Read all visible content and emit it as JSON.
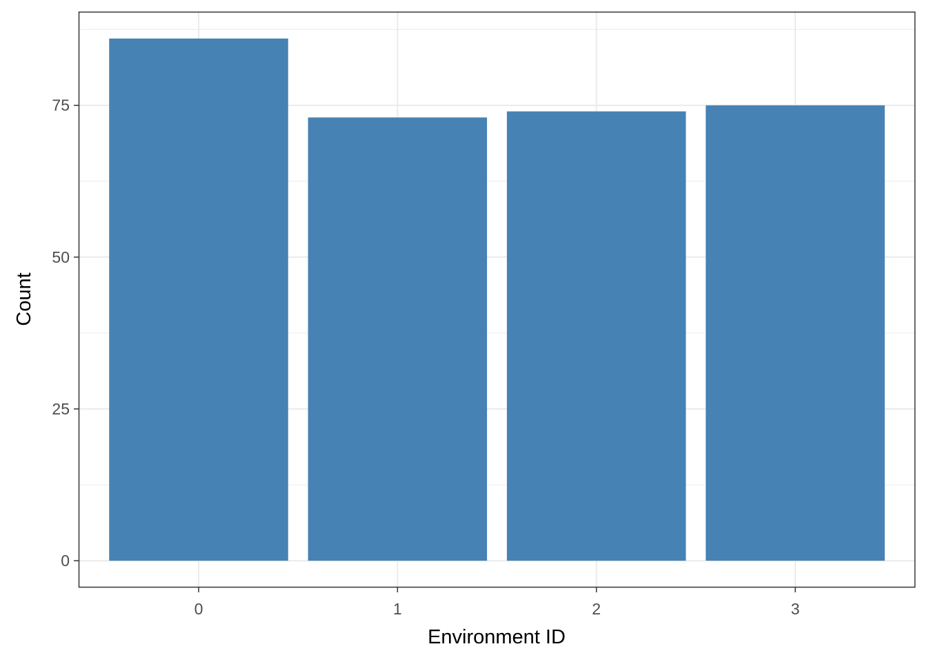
{
  "chart_data": {
    "type": "bar",
    "title": "",
    "xlabel": "Environment ID",
    "ylabel": "Count",
    "categories": [
      "0",
      "1",
      "2",
      "3"
    ],
    "values": [
      86,
      73,
      74,
      75
    ],
    "ylim": [
      -4.3,
      90.3
    ],
    "y_ticks": [
      0,
      25,
      50,
      75
    ],
    "y_tick_labels": [
      "0",
      "25",
      "50",
      "75"
    ],
    "grid": true,
    "legend": "none",
    "colors": {
      "bar": "#4682b4",
      "grid": "#ebebeb",
      "panel_border": "#333333",
      "tick_label": "#4d4d4d",
      "axis_title": "#000000"
    }
  }
}
